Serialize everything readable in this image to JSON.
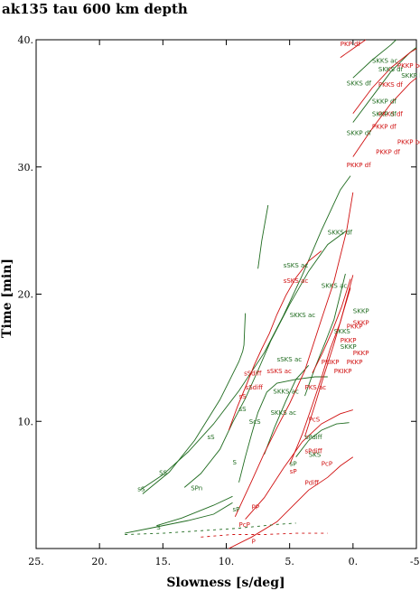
{
  "chart_data": {
    "type": "line",
    "title": "ak135 tau 600 km depth",
    "xlabel": "Slowness [s/deg]",
    "ylabel": "Time [min]",
    "xlim": [
      25,
      -5
    ],
    "ylim": [
      0,
      40
    ],
    "x_reversed": true,
    "x_ticks": [
      25,
      20,
      15,
      10,
      5,
      0,
      -5
    ],
    "x_tick_labels": [
      "25.",
      "20.",
      "15.",
      "10.",
      "5.",
      "0.",
      "-5."
    ],
    "y_ticks": [
      10,
      20,
      30,
      40
    ],
    "y_tick_labels": [
      "10.",
      "20.",
      "30.",
      "40."
    ],
    "grid": false,
    "colors": {
      "s_type": "#1f6b1f",
      "p_type": "#d01010",
      "axis": "#000000"
    },
    "series": [
      {
        "color": "s_type",
        "style": "solid",
        "points": [
          [
            16.8,
            4.6
          ],
          [
            15.0,
            5.8
          ],
          [
            13.0,
            7.6
          ],
          [
            11.0,
            9.8
          ],
          [
            9.0,
            12.4
          ],
          [
            7.0,
            15.4
          ],
          [
            5.5,
            18.3
          ],
          [
            4.0,
            21.5
          ],
          [
            2.5,
            25.0
          ],
          [
            1.0,
            28.2
          ],
          [
            0.2,
            29.3
          ]
        ]
      },
      {
        "color": "s_type",
        "style": "solid",
        "points": [
          [
            16.6,
            4.3
          ],
          [
            14.5,
            6.0
          ],
          [
            12.5,
            8.5
          ],
          [
            10.5,
            11.7
          ],
          [
            9.7,
            13.3
          ],
          [
            9.0,
            14.7
          ],
          [
            8.7,
            15.5
          ],
          [
            8.6,
            16.0
          ],
          [
            8.5,
            18.5
          ]
        ]
      },
      {
        "color": "s_type",
        "style": "solid",
        "points": [
          [
            7.5,
            22.0
          ],
          [
            7.2,
            24.2
          ],
          [
            6.7,
            27.0
          ]
        ]
      },
      {
        "color": "s_type",
        "style": "solid",
        "points": [
          [
            13.3,
            4.8
          ],
          [
            12.0,
            5.9
          ],
          [
            10.5,
            7.8
          ],
          [
            9.5,
            9.9
          ],
          [
            8.5,
            11.8
          ],
          [
            7.5,
            14.0
          ],
          [
            6.5,
            16.3
          ],
          [
            5.0,
            19.2
          ],
          [
            3.5,
            21.8
          ],
          [
            2.0,
            23.9
          ],
          [
            0.5,
            25.0
          ]
        ]
      },
      {
        "color": "s_type",
        "style": "solid",
        "points": [
          [
            18.0,
            1.2
          ],
          [
            16.0,
            1.6
          ],
          [
            13.0,
            2.2
          ],
          [
            11.0,
            2.7
          ],
          [
            9.5,
            3.6
          ]
        ]
      },
      {
        "color": "s_type",
        "style": "solid",
        "points": [
          [
            15.5,
            1.8
          ],
          [
            13.5,
            2.4
          ],
          [
            11.0,
            3.4
          ],
          [
            9.5,
            4.1
          ]
        ]
      },
      {
        "color": "s_type",
        "style": "solid",
        "points": [
          [
            9.0,
            5.2
          ],
          [
            8.5,
            7.2
          ],
          [
            8.0,
            9.0
          ],
          [
            7.5,
            10.7
          ],
          [
            6.8,
            12.3
          ],
          [
            6.0,
            13.0
          ],
          [
            4.5,
            13.3
          ],
          [
            3.0,
            13.5
          ],
          [
            2.0,
            13.5
          ]
        ]
      },
      {
        "color": "s_type",
        "style": "solid",
        "points": [
          [
            7.0,
            7.4
          ],
          [
            6.2,
            9.5
          ],
          [
            5.3,
            11.6
          ],
          [
            4.5,
            13.3
          ],
          [
            3.5,
            14.4
          ]
        ]
      },
      {
        "color": "s_type",
        "style": "solid",
        "points": [
          [
            4.5,
            7.2
          ],
          [
            3.5,
            8.5
          ],
          [
            2.5,
            9.3
          ],
          [
            1.3,
            9.8
          ],
          [
            0.3,
            9.9
          ]
        ]
      },
      {
        "color": "s_type",
        "style": "solid",
        "points": [
          [
            3.8,
            12.0
          ],
          [
            3.0,
            14.2
          ],
          [
            2.2,
            16.2
          ],
          [
            1.5,
            18.0
          ],
          [
            0.6,
            21.6
          ]
        ]
      },
      {
        "color": "s_type",
        "style": "solid",
        "points": [
          [
            0.0,
            33.5
          ],
          [
            -1.5,
            35.5
          ],
          [
            -3.0,
            37.5
          ],
          [
            -4.5,
            39.0
          ],
          [
            -5.0,
            39.4
          ]
        ]
      },
      {
        "color": "s_type",
        "style": "solid",
        "points": [
          [
            0.0,
            37.0
          ],
          [
            -1.5,
            38.4
          ],
          [
            -3.0,
            39.6
          ],
          [
            -3.4,
            40.0
          ]
        ]
      },
      {
        "color": "p_type",
        "style": "solid",
        "points": [
          [
            9.8,
            0.0
          ],
          [
            8.0,
            0.9
          ],
          [
            6.0,
            2.1
          ],
          [
            4.5,
            3.6
          ],
          [
            3.5,
            4.6
          ],
          [
            2.0,
            5.6
          ],
          [
            1.0,
            6.5
          ],
          [
            0.0,
            7.2
          ]
        ]
      },
      {
        "color": "p_type",
        "style": "solid",
        "points": [
          [
            8.5,
            2.3
          ],
          [
            7.0,
            4.0
          ],
          [
            5.5,
            6.3
          ],
          [
            4.0,
            8.4
          ],
          [
            2.5,
            9.8
          ],
          [
            1.0,
            10.6
          ],
          [
            0.0,
            10.9
          ]
        ]
      },
      {
        "color": "p_type",
        "style": "solid",
        "points": [
          [
            9.3,
            2.5
          ],
          [
            8.0,
            5.3
          ],
          [
            7.0,
            7.5
          ],
          [
            6.0,
            9.5
          ],
          [
            5.0,
            11.4
          ],
          [
            3.8,
            14.0
          ],
          [
            2.5,
            18.0
          ],
          [
            1.5,
            21.0
          ],
          [
            0.5,
            25.0
          ],
          [
            0.0,
            28.0
          ]
        ]
      },
      {
        "color": "p_type",
        "style": "solid",
        "points": [
          [
            9.8,
            9.3
          ],
          [
            9.1,
            11.2
          ],
          [
            8.4,
            12.9
          ],
          [
            7.8,
            14.4
          ],
          [
            7.2,
            15.7
          ],
          [
            6.6,
            16.9
          ],
          [
            6.0,
            18.4
          ],
          [
            5.3,
            19.9
          ],
          [
            4.5,
            21.3
          ],
          [
            3.5,
            22.6
          ],
          [
            2.5,
            23.4
          ]
        ]
      },
      {
        "color": "p_type",
        "style": "solid",
        "points": [
          [
            5.0,
            6.6
          ],
          [
            4.0,
            9.0
          ],
          [
            3.2,
            11.3
          ],
          [
            2.5,
            13.4
          ],
          [
            1.8,
            15.7
          ],
          [
            1.0,
            17.8
          ],
          [
            0.4,
            20.0
          ],
          [
            0.0,
            21.5
          ]
        ]
      },
      {
        "color": "p_type",
        "style": "solid",
        "points": [
          [
            3.8,
            8.8
          ],
          [
            3.0,
            11.3
          ],
          [
            2.3,
            13.6
          ],
          [
            1.5,
            16.1
          ],
          [
            0.8,
            18.5
          ],
          [
            0.2,
            20.5
          ]
        ]
      },
      {
        "color": "p_type",
        "style": "solid",
        "points": [
          [
            3.2,
            13.8
          ],
          [
            2.4,
            15.4
          ],
          [
            1.6,
            17.2
          ],
          [
            0.9,
            19.0
          ],
          [
            0.2,
            21.2
          ]
        ]
      },
      {
        "color": "p_type",
        "style": "solid",
        "points": [
          [
            0.0,
            30.8
          ],
          [
            -1.5,
            33.0
          ],
          [
            -3.0,
            35.0
          ],
          [
            -4.5,
            36.6
          ],
          [
            -5.0,
            37.0
          ]
        ]
      },
      {
        "color": "p_type",
        "style": "solid",
        "points": [
          [
            0.0,
            34.2
          ],
          [
            -1.5,
            36.2
          ],
          [
            -3.0,
            37.8
          ],
          [
            -4.5,
            39.0
          ],
          [
            -5.0,
            39.3
          ]
        ]
      },
      {
        "color": "p_type",
        "style": "solid",
        "points": [
          [
            1.0,
            38.6
          ],
          [
            0.0,
            39.3
          ],
          [
            -1.0,
            40.0
          ]
        ]
      },
      {
        "color": "s_type",
        "style": "dashed",
        "points": [
          [
            18.0,
            1.1
          ],
          [
            15.0,
            1.2
          ],
          [
            12.0,
            1.4
          ],
          [
            9.0,
            1.6
          ],
          [
            6.0,
            1.9
          ],
          [
            4.5,
            2.0
          ]
        ]
      },
      {
        "color": "p_type",
        "style": "dashed",
        "points": [
          [
            12.0,
            0.9
          ],
          [
            9.5,
            1.1
          ],
          [
            7.0,
            1.1
          ],
          [
            4.5,
            1.2
          ],
          [
            2.0,
            1.2
          ]
        ]
      }
    ],
    "annotations": [
      {
        "text": "PKP df",
        "color": "p_type",
        "x": 1.0,
        "y": 39.5
      },
      {
        "text": "SKKS ac",
        "color": "s_type",
        "x": -1.5,
        "y": 38.2
      },
      {
        "text": "SKKS df",
        "color": "s_type",
        "x": -2.0,
        "y": 37.5
      },
      {
        "text": "PKKP bc",
        "color": "p_type",
        "x": -3.5,
        "y": 37.8
      },
      {
        "text": "SKKP bc",
        "color": "s_type",
        "x": -3.8,
        "y": 37.0
      },
      {
        "text": "PKKS df",
        "color": "p_type",
        "x": -2.0,
        "y": 36.3
      },
      {
        "text": "SKKS df",
        "color": "s_type",
        "x": 0.5,
        "y": 36.4
      },
      {
        "text": "PKKS df",
        "color": "p_type",
        "x": -2.0,
        "y": 34.0
      },
      {
        "text": "SKKP df",
        "color": "s_type",
        "x": -1.5,
        "y": 35.0
      },
      {
        "text": "SKKP df",
        "color": "s_type",
        "x": -1.5,
        "y": 34.0
      },
      {
        "text": "PKKP df",
        "color": "p_type",
        "x": -1.5,
        "y": 33.0
      },
      {
        "text": "SKKP df",
        "color": "s_type",
        "x": 0.5,
        "y": 32.5
      },
      {
        "text": "PKKP bc",
        "color": "p_type",
        "x": -3.5,
        "y": 31.8
      },
      {
        "text": "PKKP df",
        "color": "p_type",
        "x": -1.8,
        "y": 31.0
      },
      {
        "text": "PKKP df",
        "color": "p_type",
        "x": 0.5,
        "y": 30.0
      },
      {
        "text": "SKKS df",
        "color": "s_type",
        "x": 2.0,
        "y": 24.7
      },
      {
        "text": "sSKS ac",
        "color": "s_type",
        "x": 5.5,
        "y": 22.1
      },
      {
        "text": "sSKS ac",
        "color": "p_type",
        "x": 5.5,
        "y": 20.9
      },
      {
        "text": "SKKS ac",
        "color": "s_type",
        "x": 2.5,
        "y": 20.5
      },
      {
        "text": "SKKP",
        "color": "s_type",
        "x": 0.0,
        "y": 18.5
      },
      {
        "text": "SKKS ac",
        "color": "s_type",
        "x": 5.0,
        "y": 18.2
      },
      {
        "text": "SKKP",
        "color": "p_type",
        "x": 0.0,
        "y": 17.6
      },
      {
        "text": "PKKP",
        "color": "p_type",
        "x": 0.5,
        "y": 17.3
      },
      {
        "text": "SKKS",
        "color": "s_type",
        "x": 1.5,
        "y": 16.9
      },
      {
        "text": "PKKP",
        "color": "p_type",
        "x": 1.0,
        "y": 16.2
      },
      {
        "text": "SKKP",
        "color": "s_type",
        "x": 1.0,
        "y": 15.7
      },
      {
        "text": "PKKP",
        "color": "p_type",
        "x": 0.0,
        "y": 15.2
      },
      {
        "text": "PKIKP",
        "color": "p_type",
        "x": 2.5,
        "y": 14.5
      },
      {
        "text": "PKKP",
        "color": "p_type",
        "x": 0.5,
        "y": 14.5
      },
      {
        "text": "PKIKP",
        "color": "p_type",
        "x": 1.5,
        "y": 13.8
      },
      {
        "text": "sSKS ac",
        "color": "s_type",
        "x": 6.0,
        "y": 14.7
      },
      {
        "text": "sSKS ac",
        "color": "p_type",
        "x": 6.8,
        "y": 13.8
      },
      {
        "text": "sSdiff",
        "color": "p_type",
        "x": 8.6,
        "y": 13.6
      },
      {
        "text": "sSdiff",
        "color": "p_type",
        "x": 8.5,
        "y": 12.5
      },
      {
        "text": "SKKS ac",
        "color": "s_type",
        "x": 6.3,
        "y": 12.2
      },
      {
        "text": "PKS ac",
        "color": "p_type",
        "x": 3.8,
        "y": 12.5
      },
      {
        "text": "sS",
        "color": "p_type",
        "x": 9.0,
        "y": 11.8
      },
      {
        "text": "SKKS ac",
        "color": "s_type",
        "x": 6.5,
        "y": 10.5
      },
      {
        "text": "sS",
        "color": "s_type",
        "x": 9.0,
        "y": 10.8
      },
      {
        "text": "ScS",
        "color": "s_type",
        "x": 8.2,
        "y": 9.8
      },
      {
        "text": "PcS",
        "color": "p_type",
        "x": 3.5,
        "y": 10.0
      },
      {
        "text": "sS",
        "color": "s_type",
        "x": 11.5,
        "y": 8.6
      },
      {
        "text": "sPdiff",
        "color": "s_type",
        "x": 3.8,
        "y": 8.6
      },
      {
        "text": "SKS",
        "color": "s_type",
        "x": 3.5,
        "y": 7.2
      },
      {
        "text": "sPdiff",
        "color": "p_type",
        "x": 3.8,
        "y": 7.5
      },
      {
        "text": "PcP",
        "color": "p_type",
        "x": 2.5,
        "y": 6.5
      },
      {
        "text": "S",
        "color": "s_type",
        "x": 9.5,
        "y": 6.6
      },
      {
        "text": "SS",
        "color": "s_type",
        "x": 15.3,
        "y": 5.8
      },
      {
        "text": "sP",
        "color": "s_type",
        "x": 5.0,
        "y": 6.5
      },
      {
        "text": "sP",
        "color": "p_type",
        "x": 5.0,
        "y": 5.9
      },
      {
        "text": "SPn",
        "color": "s_type",
        "x": 12.8,
        "y": 4.6
      },
      {
        "text": "Pdiff",
        "color": "p_type",
        "x": 3.8,
        "y": 5.0
      },
      {
        "text": "sS",
        "color": "s_type",
        "x": 17.0,
        "y": 4.5
      },
      {
        "text": "PP",
        "color": "p_type",
        "x": 8.0,
        "y": 3.1
      },
      {
        "text": "sP",
        "color": "s_type",
        "x": 9.5,
        "y": 2.9
      },
      {
        "text": "PcP",
        "color": "p_type",
        "x": 9.0,
        "y": 1.7
      },
      {
        "text": "S",
        "color": "s_type",
        "x": 15.5,
        "y": 1.5
      },
      {
        "text": "P",
        "color": "p_type",
        "x": 8.0,
        "y": 0.4
      }
    ]
  }
}
